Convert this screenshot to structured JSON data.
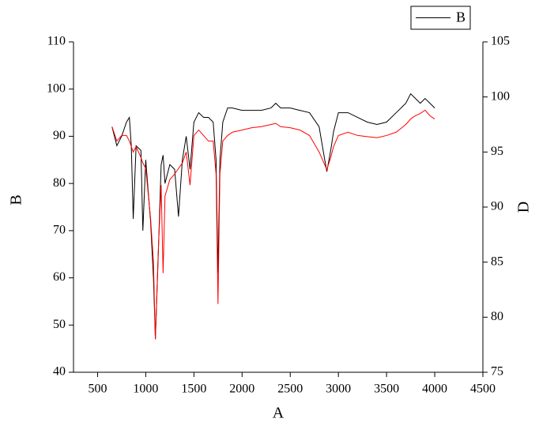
{
  "chart_data": {
    "type": "line",
    "xlabel": "A",
    "ylabel": "B",
    "y2label": "D",
    "x": [
      650,
      700,
      750,
      800,
      830,
      850,
      870,
      900,
      950,
      970,
      1000,
      1050,
      1080,
      1100,
      1130,
      1160,
      1180,
      1200,
      1250,
      1300,
      1340,
      1380,
      1420,
      1460,
      1500,
      1550,
      1600,
      1650,
      1700,
      1730,
      1750,
      1770,
      1800,
      1850,
      1900,
      2000,
      2100,
      2200,
      2300,
      2350,
      2400,
      2500,
      2600,
      2700,
      2800,
      2850,
      2880,
      2920,
      2950,
      3000,
      3100,
      3200,
      3300,
      3400,
      3500,
      3600,
      3700,
      3750,
      3800,
      3850,
      3900,
      3950,
      4000
    ],
    "series": [
      {
        "name": "B",
        "color": "#000000",
        "values": [
          92,
          88,
          90,
          93,
          94,
          88,
          72.5,
          88,
          87,
          70,
          85,
          72,
          60,
          47,
          65,
          84,
          86,
          80,
          84,
          83,
          73,
          85,
          90,
          83,
          93,
          95,
          94,
          94,
          93,
          85,
          61,
          85,
          93,
          96,
          96,
          95.5,
          95.5,
          95.5,
          96,
          97,
          96,
          96,
          95.5,
          95,
          92,
          86,
          82.5,
          87,
          91,
          95,
          95,
          94,
          93,
          92.5,
          93,
          95,
          97,
          99,
          98,
          97,
          98,
          97,
          96
        ]
      },
      {
        "color": "#ff0000",
        "axis": "y2",
        "values": [
          97.3,
          96,
          96.5,
          96.5,
          96,
          95.5,
          95,
          95.5,
          94.5,
          94,
          93.5,
          89,
          85,
          78,
          86,
          92,
          84,
          91,
          92.5,
          93,
          93.5,
          94,
          95,
          92,
          96.5,
          97,
          96.5,
          96,
          96,
          93,
          81.2,
          93,
          96,
          96.5,
          96.8,
          97,
          97.2,
          97.3,
          97.5,
          97.6,
          97.3,
          97.2,
          97,
          96.5,
          95,
          94,
          93.4,
          94.5,
          95.5,
          96.5,
          96.8,
          96.5,
          96.4,
          96.3,
          96.5,
          96.8,
          97.5,
          98,
          98.3,
          98.5,
          98.8,
          98.3,
          98
        ]
      }
    ],
    "xlim": [
      250,
      4500
    ],
    "xticks": [
      500,
      1000,
      1500,
      2000,
      2500,
      3000,
      3500,
      4000,
      4500
    ],
    "ylim": [
      40,
      110
    ],
    "yticks": [
      40,
      50,
      60,
      70,
      80,
      90,
      100,
      110
    ],
    "y2lim": [
      75,
      105
    ],
    "y2ticks": [
      75,
      80,
      85,
      90,
      95,
      100,
      105
    ],
    "legend": "upper right"
  }
}
